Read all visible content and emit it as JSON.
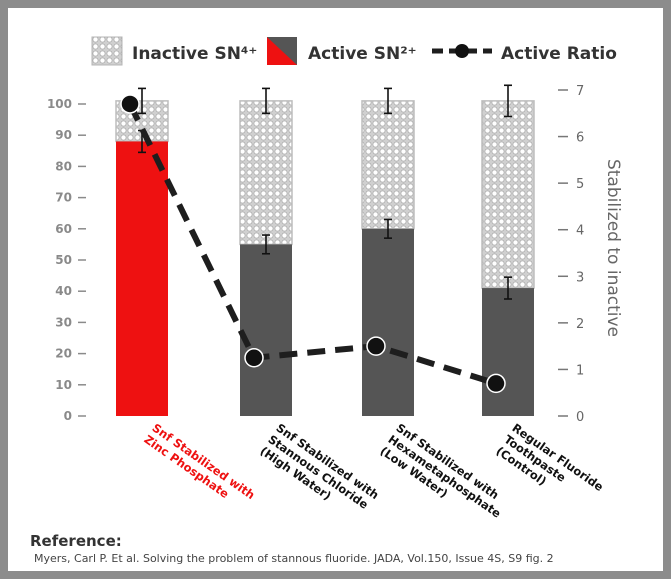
{
  "chart_data": {
    "type": "bar",
    "categories": [
      [
        "Snf Stabilized with",
        "Zinc Phosphate"
      ],
      [
        "Snf Stabilized with",
        "Stannous Chloride",
        "(High Water)"
      ],
      [
        "Snf Stabilized with",
        "Hexametaphosphate",
        "(Low Water)"
      ],
      [
        "Regular Fluoride",
        "Toothpaste",
        "(Control)"
      ]
    ],
    "category_colors": [
      "#ee1111",
      "#111111",
      "#111111",
      "#111111"
    ],
    "series": [
      {
        "name": "Active SN²⁺",
        "values": [
          88,
          55,
          60,
          41
        ],
        "errors": [
          3.5,
          3,
          3,
          3.5
        ]
      },
      {
        "name": "Inactive SN⁴⁺",
        "values": [
          13,
          46,
          41,
          60
        ],
        "errors": [
          4,
          4,
          4,
          5
        ]
      },
      {
        "name": "Active Ratio",
        "axis": "right",
        "values": [
          6.7,
          1.25,
          1.5,
          0.7
        ]
      }
    ],
    "colors": {
      "active_first": "#ee1111",
      "active": "#555555",
      "inactive": "#c4c4c4",
      "ratio_line": "#1e1e1e",
      "axis_text": "#8a8a8a"
    },
    "y_left": {
      "ticks": [
        0,
        10,
        20,
        30,
        40,
        50,
        60,
        70,
        80,
        90,
        100
      ],
      "ylim": [
        0,
        100
      ]
    },
    "y_right": {
      "label": "Stabilized to inactive",
      "ticks": [
        0,
        1,
        2,
        3,
        4,
        5,
        6,
        7
      ],
      "ylim": [
        0,
        7
      ]
    },
    "legend": {
      "placement": "top",
      "items": [
        {
          "label": "Inactive SN⁴⁺",
          "icon": "dotted-square"
        },
        {
          "label": "Active SN²⁺",
          "icon": "red-dark-split-square"
        },
        {
          "label": "Active Ratio",
          "icon": "dashed-line-with-dot"
        }
      ]
    },
    "grid": false
  },
  "reference": {
    "title": "Reference:",
    "text": "Myers, Carl P. Et al. Solving the problem of stannous fluoride. JADA, Vol.150, Issue 4S, S9 fig. 2"
  }
}
